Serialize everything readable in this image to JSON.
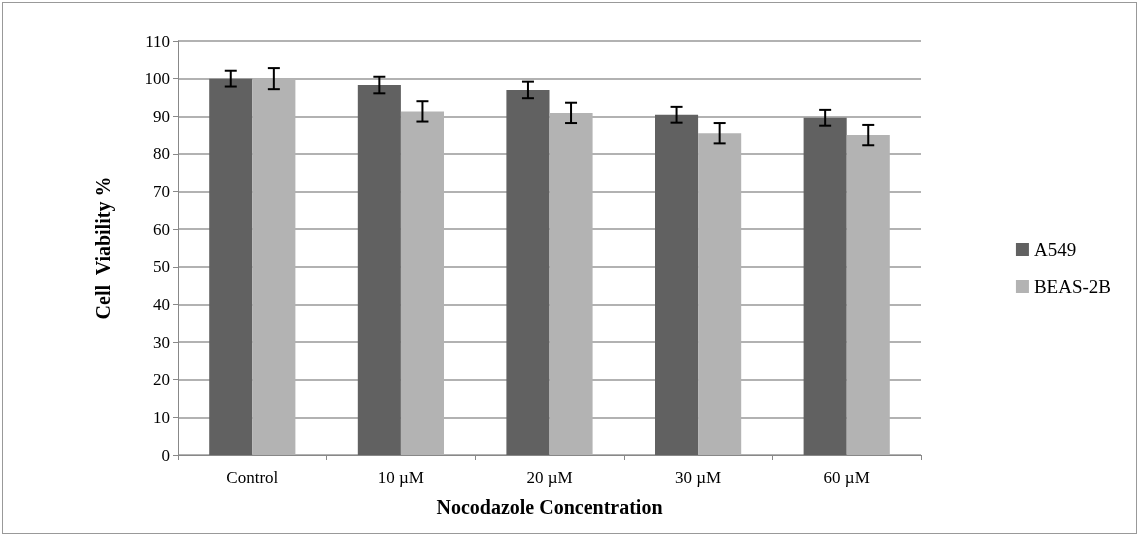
{
  "chart_data": {
    "type": "bar",
    "xlabel": "Nocodazole Concentration",
    "ylabel": "Cell  Viability %",
    "categories": [
      "Control",
      "10 µM",
      "20 µM",
      "30 µM",
      "60 µM"
    ],
    "series": [
      {
        "name": "A549",
        "color": "#616161",
        "values": [
          100,
          98.3,
          97,
          90.4,
          89.6
        ],
        "errors": [
          2.1,
          2.2,
          2.2,
          2.1,
          2.1
        ]
      },
      {
        "name": "BEAS-2B",
        "color": "#b3b3b3",
        "values": [
          100,
          91.3,
          90.9,
          85.5,
          85
        ],
        "errors": [
          2.8,
          2.7,
          2.7,
          2.7,
          2.7
        ]
      }
    ],
    "ylim": [
      0,
      110
    ],
    "yticks": [
      0,
      10,
      20,
      30,
      40,
      50,
      60,
      70,
      80,
      90,
      100,
      110
    ],
    "grid": "y",
    "legend": "right"
  }
}
